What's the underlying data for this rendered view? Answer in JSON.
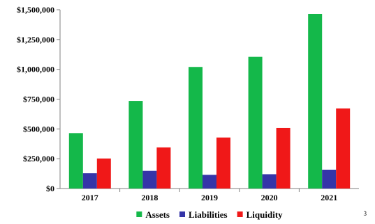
{
  "chart_data": {
    "type": "bar",
    "categories": [
      "2017",
      "2018",
      "2019",
      "2020",
      "2021"
    ],
    "series": [
      {
        "name": "Assets",
        "color": "#14b84a",
        "values": [
          465000,
          735000,
          1020000,
          1105000,
          1465000
        ]
      },
      {
        "name": "Liabilities",
        "color": "#3535a8",
        "values": [
          128000,
          148000,
          115000,
          120000,
          158000
        ]
      },
      {
        "name": "Liquidity",
        "color": "#f01818",
        "values": [
          252000,
          345000,
          428000,
          508000,
          672000
        ]
      }
    ],
    "ylim": [
      0,
      1500000
    ],
    "yticks": [
      0,
      250000,
      500000,
      750000,
      1000000,
      1250000,
      1500000
    ],
    "ytick_labels": [
      "$0",
      "$250,000",
      "$500,000",
      "$750,000",
      "$1,000,000",
      "$1,250,000",
      "$1,500,000"
    ],
    "legend_position": "bottom",
    "grid": false
  },
  "page_number": "3"
}
